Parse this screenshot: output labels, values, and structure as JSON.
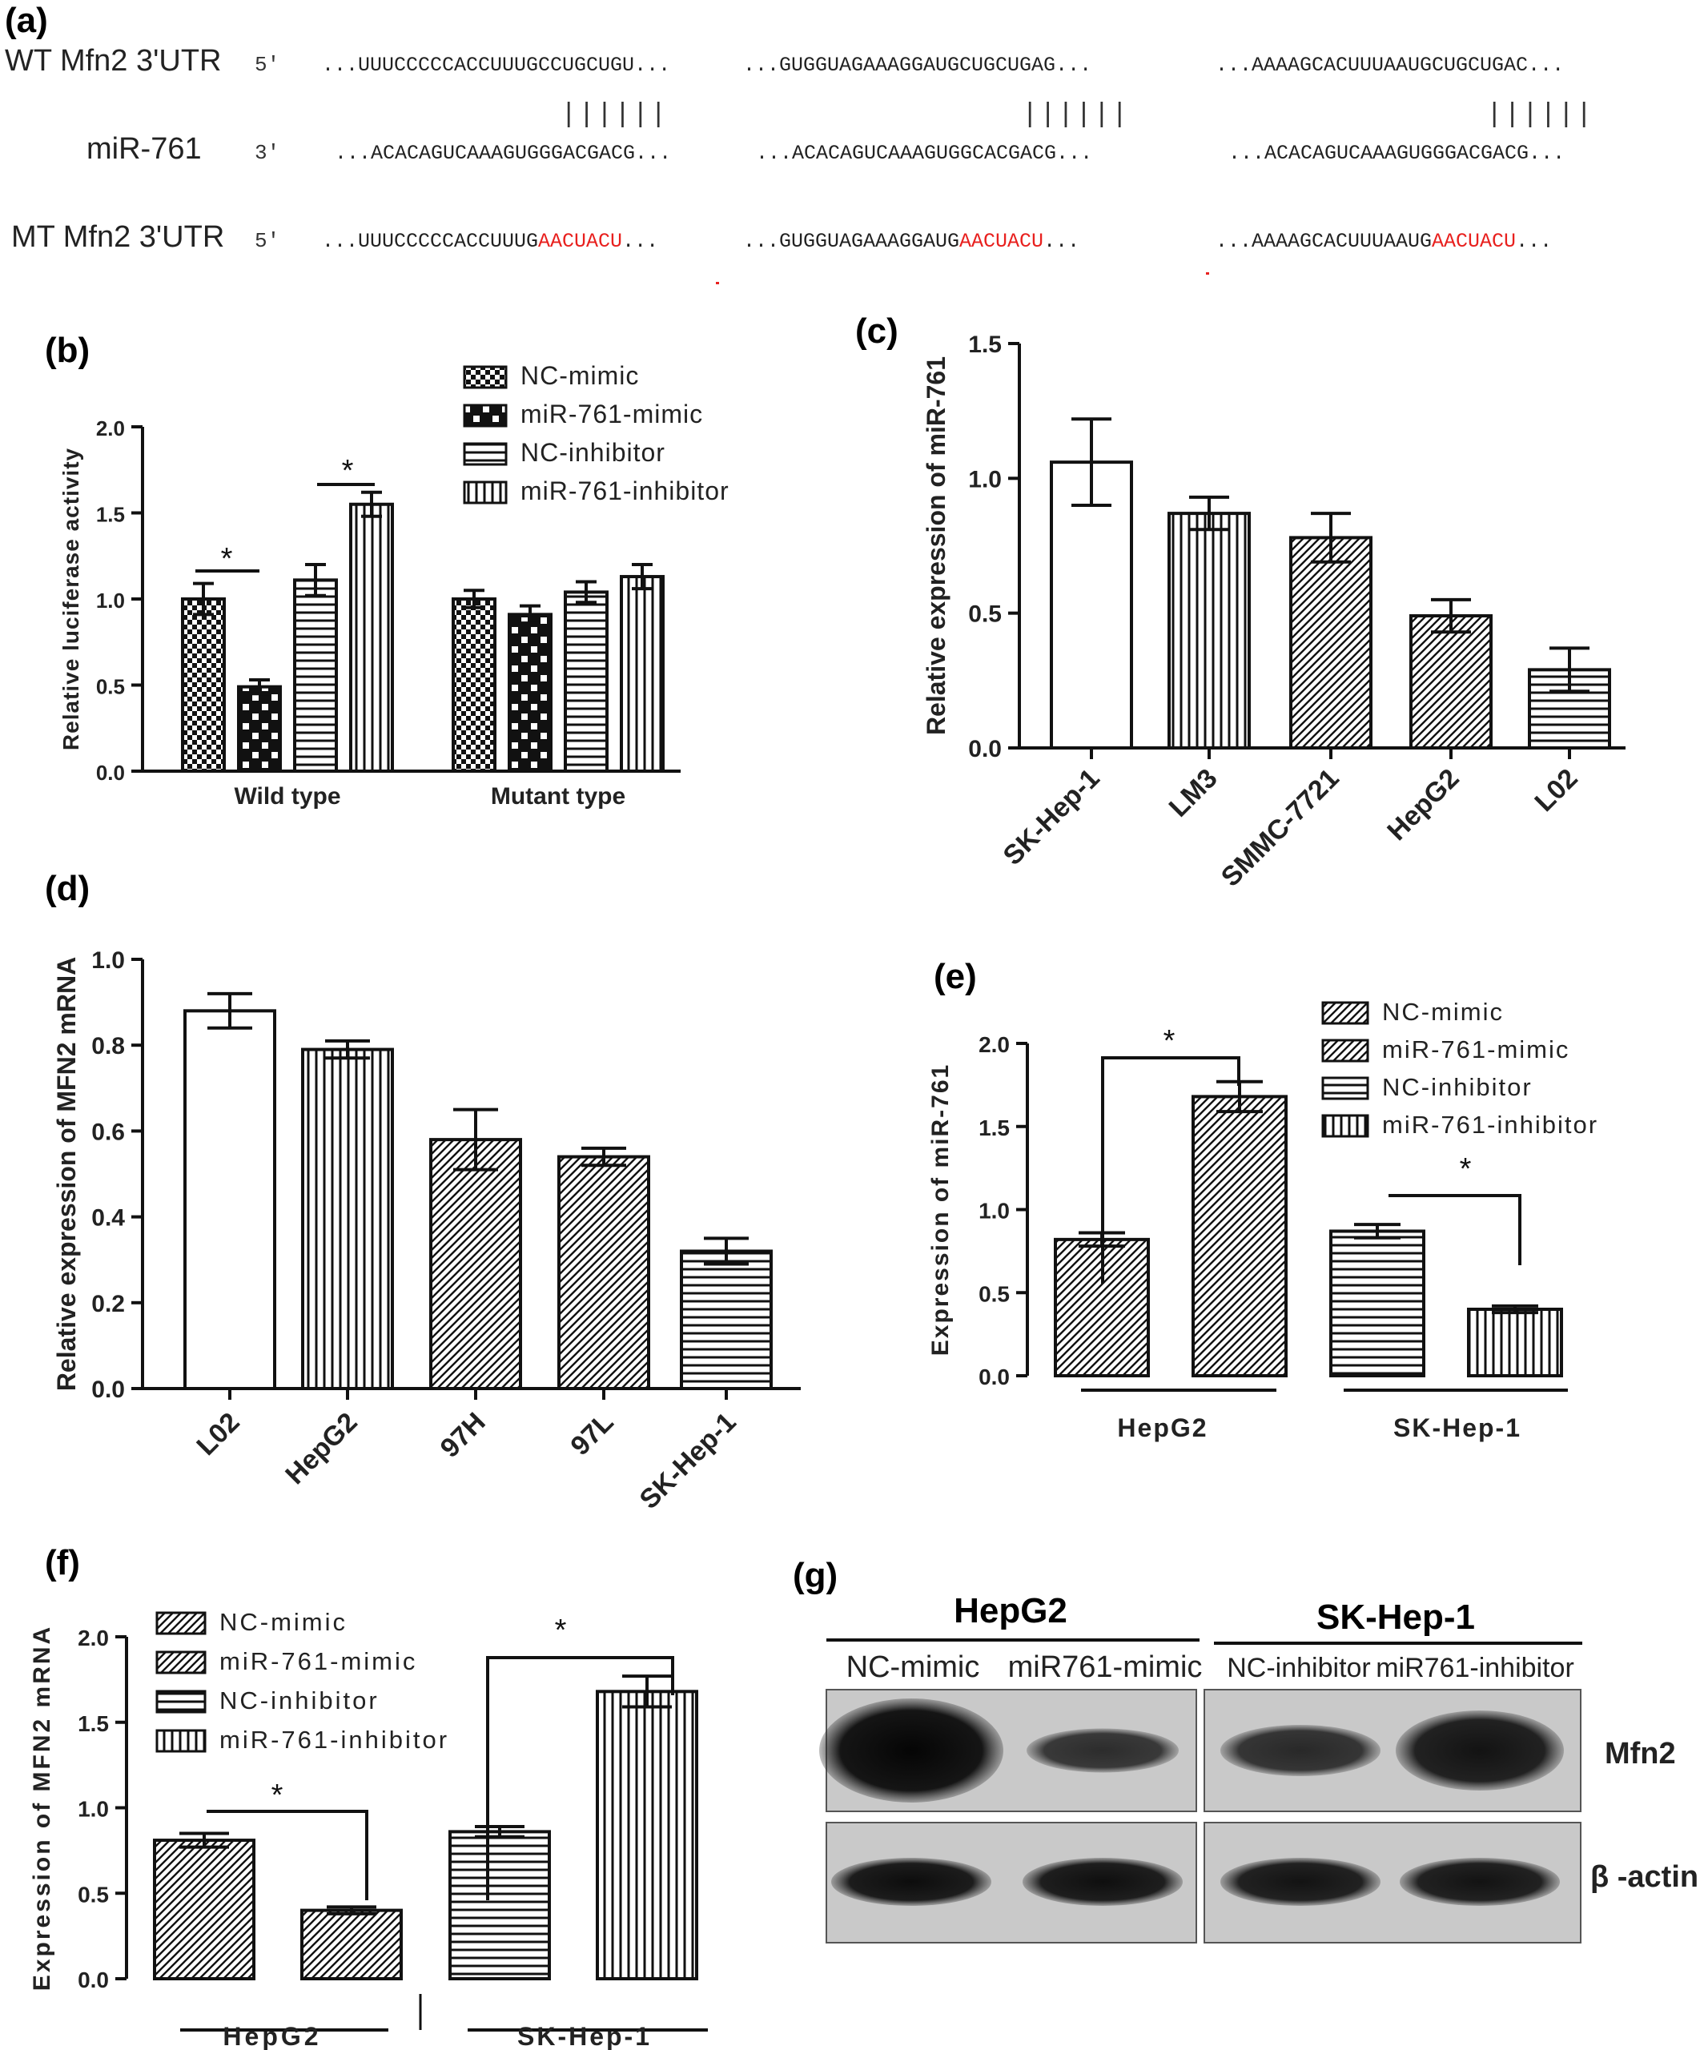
{
  "panel_a": {
    "label": "(a)",
    "rows": [
      {
        "name": "WT Mfn2 3'UTR",
        "end": "5'",
        "segments": [
          {
            "plain": "...UUUCCCCCACCUUUGCCUGCUGU...",
            "red": ""
          },
          {
            "plain": "...GUGGUAGAAAGGAUGCUGCUGAG...",
            "red": ""
          },
          {
            "plain": "...AAAAGCACUUUAAUGCUGCUGAC...",
            "red": ""
          }
        ]
      },
      {
        "name": "miR-761",
        "end": "3'",
        "segments": [
          {
            "plain": "...ACACAGUCAAAGUGGGACGACG...",
            "red": ""
          },
          {
            "plain": "...ACACAGUCAAAGUGGCACGACG...",
            "red": ""
          },
          {
            "plain": "...ACACAGUCAAAGUGGGACGACG...",
            "red": ""
          }
        ]
      },
      {
        "name": "MT Mfn2 3'UTR",
        "end": "5'",
        "segments": [
          {
            "plain": "...UUUCCCCCACCUUUG",
            "red": "AACUACU",
            "tail": "..."
          },
          {
            "plain": "...GUGGUAGAAAGGAUG",
            "red": "AACUACU",
            "tail": "..."
          },
          {
            "plain": "...AAAAGCACUUUAAUG",
            "red": "AACUACU",
            "tail": "..."
          }
        ]
      }
    ],
    "pairing_marks": "||||||"
  },
  "colors": {
    "mutation": "#e8201e",
    "axis": "#111111",
    "bar_fill": "#ffffff"
  },
  "chart_data": [
    {
      "id": "b",
      "label": "(b)",
      "type": "bar",
      "ylabel": "Relative luciferase activity",
      "ylim": [
        0,
        2.0
      ],
      "yticks": [
        "0.0",
        "0.5",
        "1.0",
        "1.5",
        "2.0"
      ],
      "categories": [
        "Wild type",
        "Mutant type"
      ],
      "series": [
        {
          "name": "NC-mimic",
          "pattern": "check",
          "values": [
            1.0,
            1.0
          ],
          "errors": [
            0.09,
            0.05
          ]
        },
        {
          "name": "miR-761-mimic",
          "pattern": "bigcheck",
          "values": [
            0.49,
            0.91
          ],
          "errors": [
            0.04,
            0.05
          ]
        },
        {
          "name": "NC-inhibitor",
          "pattern": "hlines",
          "values": [
            1.11,
            1.04
          ],
          "errors": [
            0.09,
            0.06
          ]
        },
        {
          "name": "miR-761-inhibitor",
          "pattern": "vlines",
          "values": [
            1.55,
            1.13
          ],
          "errors": [
            0.07,
            0.07
          ]
        }
      ],
      "significance": [
        "*",
        "*"
      ]
    },
    {
      "id": "c",
      "label": "(c)",
      "type": "bar",
      "ylabel": "Relative expression of miR-761",
      "ylim": [
        0,
        1.5
      ],
      "yticks": [
        "0.0",
        "0.5",
        "1.0",
        "1.5"
      ],
      "categories": [
        "SK-Hep-1",
        "LM3",
        "SMMC-7721",
        "HepG2",
        "L02"
      ],
      "values": [
        1.06,
        0.87,
        0.78,
        0.49,
        0.29
      ],
      "errors": [
        0.16,
        0.06,
        0.09,
        0.06,
        0.08
      ],
      "patterns": [
        "none",
        "vlines",
        "diag",
        "diag",
        "hlines"
      ]
    },
    {
      "id": "d",
      "label": "(d)",
      "type": "bar",
      "ylabel": "Relative expression of MFN2 mRNA",
      "ylim": [
        0,
        1.0
      ],
      "yticks": [
        "0.0",
        "0.2",
        "0.4",
        "0.6",
        "0.8",
        "1.0"
      ],
      "categories": [
        "L02",
        "HepG2",
        "97H",
        "97L",
        "SK-Hep-1"
      ],
      "values": [
        0.88,
        0.79,
        0.58,
        0.54,
        0.32
      ],
      "errors": [
        0.04,
        0.02,
        0.07,
        0.02,
        0.03
      ],
      "patterns": [
        "none",
        "vlines",
        "diag",
        "diag",
        "hlines"
      ]
    },
    {
      "id": "e",
      "label": "(e)",
      "type": "bar",
      "ylabel": "Expression of miR-761",
      "ylim": [
        0,
        2.0
      ],
      "yticks": [
        "0.0",
        "0.5",
        "1.0",
        "1.5",
        "2.0"
      ],
      "categories": [
        "HepG2",
        "SK-Hep-1"
      ],
      "legend": [
        {
          "name": "NC-mimic",
          "pattern": "diag"
        },
        {
          "name": "miR-761-mimic",
          "pattern": "diag"
        },
        {
          "name": "NC-inhibitor",
          "pattern": "hlines"
        },
        {
          "name": "miR-761-inhibitor",
          "pattern": "vlines"
        }
      ],
      "bars": [
        {
          "group": 0,
          "value": 0.82,
          "error": 0.04,
          "pattern": "diag"
        },
        {
          "group": 0,
          "value": 1.68,
          "error": 0.09,
          "pattern": "diag"
        },
        {
          "group": 1,
          "value": 0.87,
          "error": 0.04,
          "pattern": "hlines"
        },
        {
          "group": 1,
          "value": 0.4,
          "error": 0.02,
          "pattern": "vlines"
        }
      ],
      "significance": [
        "*",
        "*"
      ]
    },
    {
      "id": "f",
      "label": "(f)",
      "type": "bar",
      "ylabel": "Expression of MFN2 mRNA",
      "ylim": [
        0,
        2.0
      ],
      "yticks": [
        "0.0",
        "0.5",
        "1.0",
        "1.5",
        "2.0"
      ],
      "categories": [
        "HepG2",
        "SK-Hep-1"
      ],
      "legend": [
        {
          "name": "NC-mimic",
          "pattern": "diag"
        },
        {
          "name": "miR-761-mimic",
          "pattern": "diag"
        },
        {
          "name": "NC-inhibitor",
          "pattern": "hlines"
        },
        {
          "name": "miR-761-inhibitor",
          "pattern": "vlines"
        }
      ],
      "bars": [
        {
          "group": 0,
          "value": 0.81,
          "error": 0.04,
          "pattern": "diag"
        },
        {
          "group": 0,
          "value": 0.4,
          "error": 0.02,
          "pattern": "diag"
        },
        {
          "group": 1,
          "value": 0.86,
          "error": 0.03,
          "pattern": "hlines"
        },
        {
          "group": 1,
          "value": 1.68,
          "error": 0.09,
          "pattern": "vlines"
        }
      ],
      "significance": [
        "*",
        "*"
      ]
    }
  ],
  "panel_g": {
    "label": "(g)",
    "groups": [
      "HepG2",
      "SK-Hep-1"
    ],
    "lanes": [
      "NC-mimic",
      "miR761-mimic",
      "NC-inhibitor",
      "miR761-inhibitor"
    ],
    "bands": [
      "Mfn2",
      "β -actin"
    ],
    "mfn2_intensity": [
      1.0,
      0.55,
      0.6,
      0.85
    ],
    "actin_intensity": [
      0.9,
      0.88,
      0.85,
      0.85
    ]
  }
}
